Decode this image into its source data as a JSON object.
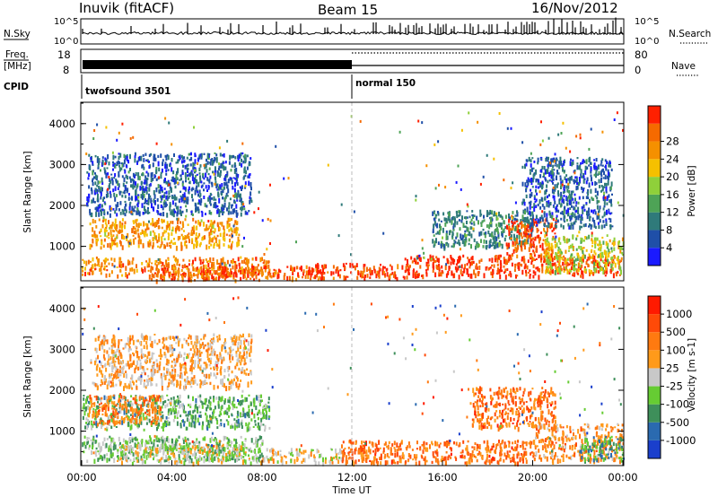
{
  "header": {
    "left_title": "Inuvik (fitACF)",
    "center_title": "Beam 15",
    "right_title": "16/Nov/2012"
  },
  "status_panel": {
    "nsky_label": "N.Sky",
    "nsky_ticks": [
      "10^5",
      "10^0"
    ],
    "nsearch_ticks": [
      "10^5",
      "10^0"
    ],
    "nsearch_label": "N.Search",
    "freq_label_1": "Freq.",
    "freq_label_2": "[MHz]",
    "freq_ticks": [
      "18",
      "8"
    ],
    "nave_ticks": [
      "80",
      "0"
    ],
    "nave_label": "Nave",
    "cpid_label": "CPID",
    "cpid_segments": [
      {
        "label": "twofsound 3501",
        "start": 0,
        "end": 12
      },
      {
        "label": "normal 150",
        "start": 12,
        "end": 24
      }
    ]
  },
  "chart_data": [
    {
      "type": "heatmap",
      "title": "Power",
      "xlabel": "",
      "ylabel": "Slant Range [km]",
      "xlim": [
        0,
        24
      ],
      "ylim": [
        180,
        4500
      ],
      "y_ticks": [
        "1000",
        "2000",
        "3000",
        "4000"
      ],
      "colorbar_label": "Power [dB]",
      "colorbar_ticks": [
        "4",
        "8",
        "12",
        "16",
        "20",
        "24",
        "28"
      ],
      "colors": [
        "#1a1aff",
        "#1f4fa8",
        "#2f7a7a",
        "#4ea356",
        "#8fd03a",
        "#f5c000",
        "#f59000",
        "#f56a00",
        "#ff2000"
      ],
      "regions": [
        {
          "t0": 0.0,
          "t1": 8.3,
          "r0": 300,
          "r1": 750,
          "level": 0.78
        },
        {
          "t0": 0.3,
          "t1": 7.0,
          "r0": 1000,
          "r1": 1700,
          "level": 0.7
        },
        {
          "t0": 0.2,
          "t1": 7.5,
          "r0": 1800,
          "r1": 3300,
          "level": 0.2
        },
        {
          "t0": 3.0,
          "t1": 10.5,
          "r0": 200,
          "r1": 550,
          "level": 0.85
        },
        {
          "t0": 10.0,
          "t1": 14.5,
          "r0": 250,
          "r1": 600,
          "level": 0.9
        },
        {
          "t0": 14.3,
          "t1": 23.9,
          "r0": 300,
          "r1": 800,
          "level": 0.93
        },
        {
          "t0": 15.5,
          "t1": 20.0,
          "r0": 1000,
          "r1": 1900,
          "level": 0.3
        },
        {
          "t0": 18.8,
          "t1": 21.0,
          "r0": 700,
          "r1": 1700,
          "level": 0.88
        },
        {
          "t0": 20.5,
          "t1": 24.0,
          "r0": 400,
          "r1": 1300,
          "level": 0.55
        },
        {
          "t0": 19.5,
          "t1": 23.5,
          "r0": 1500,
          "r1": 3200,
          "level": 0.2
        }
      ]
    },
    {
      "type": "heatmap",
      "title": "Velocity",
      "xlabel": "Time UT",
      "ylabel": "Slant Range [km]",
      "xlim": [
        0,
        24
      ],
      "ylim": [
        180,
        4500
      ],
      "x_ticks": [
        "00:00",
        "04:00",
        "08:00",
        "12:00",
        "16:00",
        "20:00",
        "00:00"
      ],
      "y_ticks": [
        "1000",
        "2000",
        "3000",
        "4000"
      ],
      "colorbar_label": "Velocity [m s-1]",
      "colorbar_ticks": [
        "1000",
        "500",
        "100",
        "25",
        "-25",
        "-100",
        "-500",
        "-1000"
      ],
      "colors": [
        "#1a3fcc",
        "#2a6ab0",
        "#3e8f5a",
        "#66cc33",
        "#c8c8c8",
        "#ff9a1a",
        "#ff7a10",
        "#ff4a08",
        "#ff1a00"
      ],
      "regions": [
        {
          "t0": 0.0,
          "t1": 8.3,
          "r0": 1100,
          "r1": 1900,
          "level": 0.35
        },
        {
          "t0": 0.2,
          "t1": 3.5,
          "r0": 1200,
          "r1": 1900,
          "level": 0.7
        },
        {
          "t0": 0.0,
          "t1": 8.0,
          "r0": 300,
          "r1": 900,
          "level": 0.38
        },
        {
          "t0": 1.5,
          "t1": 8.0,
          "r0": 250,
          "r1": 700,
          "level": 0.5
        },
        {
          "t0": 0.5,
          "t1": 7.5,
          "r0": 2100,
          "r1": 3400,
          "level": 0.6
        },
        {
          "t0": 8.0,
          "t1": 11.5,
          "r0": 250,
          "r1": 600,
          "level": 0.55
        },
        {
          "t0": 11.5,
          "t1": 20.0,
          "r0": 250,
          "r1": 800,
          "level": 0.75
        },
        {
          "t0": 17.3,
          "t1": 21.0,
          "r0": 1100,
          "r1": 2100,
          "level": 0.75
        },
        {
          "t0": 20.0,
          "t1": 24.0,
          "r0": 300,
          "r1": 1200,
          "level": 0.65
        },
        {
          "t0": 22.0,
          "t1": 24.0,
          "r0": 300,
          "r1": 900,
          "level": 0.3
        }
      ]
    }
  ]
}
